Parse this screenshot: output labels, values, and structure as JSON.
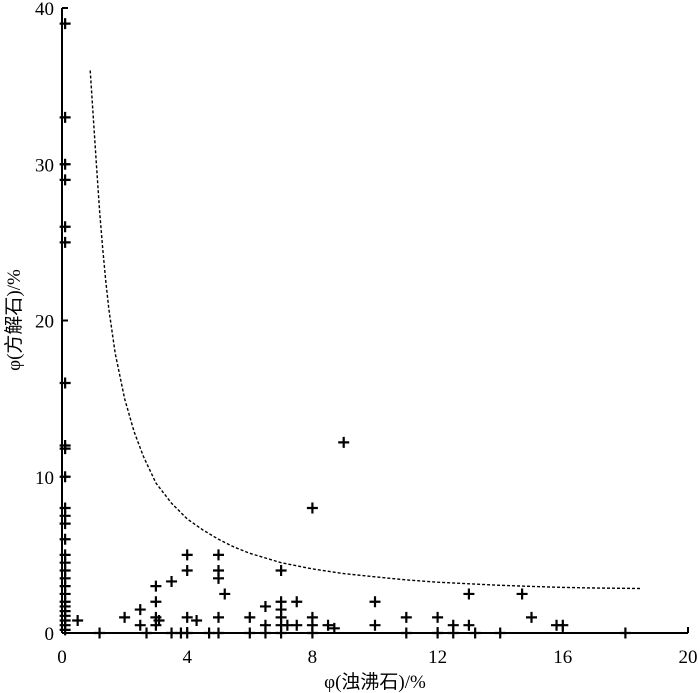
{
  "chart_data": {
    "type": "scatter",
    "xlabel": "φ(浊沸石)/%",
    "ylabel": "φ(方解石)/%",
    "xlim": [
      0,
      20
    ],
    "ylim": [
      0,
      40
    ],
    "xticks": [
      0,
      4,
      8,
      12,
      16,
      20
    ],
    "yticks": [
      0,
      10,
      20,
      30,
      40
    ],
    "grid": false,
    "legend": "none",
    "marker": "plus",
    "points": [
      [
        0.1,
        39
      ],
      [
        0.1,
        33
      ],
      [
        0.1,
        30
      ],
      [
        0.1,
        29
      ],
      [
        0.1,
        26
      ],
      [
        0.1,
        25
      ],
      [
        0.1,
        16
      ],
      [
        0.1,
        12
      ],
      [
        0.1,
        11.8
      ],
      [
        0.1,
        10
      ],
      [
        0.1,
        8
      ],
      [
        0.1,
        7.5
      ],
      [
        0.1,
        7
      ],
      [
        0.1,
        6
      ],
      [
        0.1,
        5
      ],
      [
        0.1,
        4.5
      ],
      [
        0.1,
        4
      ],
      [
        0.1,
        3.5
      ],
      [
        0.1,
        3
      ],
      [
        0.1,
        2.5
      ],
      [
        0.1,
        2
      ],
      [
        0.1,
        1.7
      ],
      [
        0.1,
        1.4
      ],
      [
        0.1,
        1.1
      ],
      [
        0.1,
        0.8
      ],
      [
        0.1,
        0.5
      ],
      [
        0.1,
        0.2
      ],
      [
        0.5,
        0.8
      ],
      [
        1.2,
        0
      ],
      [
        2,
        1
      ],
      [
        2.5,
        1.5
      ],
      [
        2.5,
        0.5
      ],
      [
        2.7,
        0
      ],
      [
        3,
        3
      ],
      [
        3,
        2
      ],
      [
        3,
        1
      ],
      [
        3,
        0.5
      ],
      [
        3.1,
        0.8
      ],
      [
        3.5,
        3.3
      ],
      [
        3.5,
        0
      ],
      [
        3.8,
        0
      ],
      [
        4,
        5
      ],
      [
        4,
        4
      ],
      [
        4,
        1
      ],
      [
        4,
        0
      ],
      [
        4.3,
        0.8
      ],
      [
        4.7,
        0
      ],
      [
        5,
        5
      ],
      [
        5,
        4
      ],
      [
        5,
        3.5
      ],
      [
        5,
        1
      ],
      [
        5,
        0
      ],
      [
        5.2,
        2.5
      ],
      [
        6,
        1
      ],
      [
        6,
        0
      ],
      [
        6.5,
        1.7
      ],
      [
        6.5,
        0.5
      ],
      [
        6.5,
        0
      ],
      [
        7,
        4
      ],
      [
        7,
        2
      ],
      [
        7,
        1.5
      ],
      [
        7,
        1
      ],
      [
        7,
        0.5
      ],
      [
        7,
        0
      ],
      [
        7.2,
        0.5
      ],
      [
        7.5,
        2
      ],
      [
        7.5,
        0.5
      ],
      [
        8,
        8
      ],
      [
        8,
        1
      ],
      [
        8,
        0.5
      ],
      [
        8,
        0
      ],
      [
        8.5,
        0.5
      ],
      [
        8.7,
        0.3
      ],
      [
        9,
        12.2
      ],
      [
        10,
        2
      ],
      [
        10,
        0.5
      ],
      [
        11,
        1
      ],
      [
        11,
        0
      ],
      [
        12,
        1
      ],
      [
        12,
        0
      ],
      [
        12.5,
        0.5
      ],
      [
        12.5,
        0
      ],
      [
        13,
        2.5
      ],
      [
        13,
        0.5
      ],
      [
        13.2,
        0
      ],
      [
        14,
        0
      ],
      [
        14.7,
        2.5
      ],
      [
        15,
        1
      ],
      [
        15.8,
        0.5
      ],
      [
        16,
        0.5
      ],
      [
        18,
        0
      ]
    ],
    "curve": {
      "style": "dashed",
      "points": [
        [
          0.9,
          36
        ],
        [
          1,
          33
        ],
        [
          1.1,
          30
        ],
        [
          1.2,
          27
        ],
        [
          1.3,
          24.6
        ],
        [
          1.4,
          22.5
        ],
        [
          1.5,
          20.7
        ],
        [
          1.7,
          17.9
        ],
        [
          2,
          15
        ],
        [
          2.3,
          12.9
        ],
        [
          2.6,
          11.3
        ],
        [
          3,
          9.6
        ],
        [
          3.5,
          8.3
        ],
        [
          4,
          7.3
        ],
        [
          4.5,
          6.6
        ],
        [
          5,
          6
        ],
        [
          5.5,
          5.5
        ],
        [
          6,
          5.1
        ],
        [
          7,
          4.5
        ],
        [
          8,
          4.1
        ],
        [
          9,
          3.8
        ],
        [
          10,
          3.6
        ],
        [
          11,
          3.4
        ],
        [
          12,
          3.25
        ],
        [
          13,
          3.15
        ],
        [
          14,
          3.05
        ],
        [
          15,
          2.98
        ],
        [
          16,
          2.92
        ],
        [
          17,
          2.88
        ],
        [
          18.5,
          2.85
        ]
      ]
    }
  }
}
